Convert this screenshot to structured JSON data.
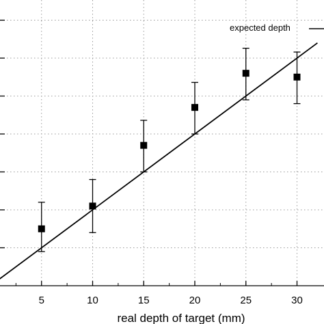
{
  "chart_data": {
    "type": "scatter",
    "xlabel": "real depth of target (mm)",
    "ylabel": "",
    "xlim": [
      0,
      32
    ],
    "ylim": [
      0,
      35
    ],
    "x_ticks": [
      5,
      10,
      15,
      20,
      25,
      30
    ],
    "y_gridlines": [
      5,
      10,
      15,
      20,
      25,
      30,
      35
    ],
    "grid": true,
    "legend_placement": "top-right",
    "series": [
      {
        "kind": "points_with_error_bars",
        "marker": "square",
        "color": "#000000",
        "points": [
          {
            "x": 5,
            "y": 7.5,
            "err_low": 3.0,
            "err_high": 3.5
          },
          {
            "x": 10,
            "y": 10.5,
            "err_low": 3.5,
            "err_high": 3.5
          },
          {
            "x": 15,
            "y": 18.5,
            "err_low": 3.5,
            "err_high": 3.3
          },
          {
            "x": 20,
            "y": 23.5,
            "err_low": 3.5,
            "err_high": 3.3
          },
          {
            "x": 25,
            "y": 28.0,
            "err_low": 3.5,
            "err_high": 3.3
          },
          {
            "x": 30,
            "y": 27.5,
            "err_low": 3.5,
            "err_high": 3.3
          }
        ]
      },
      {
        "name": "expected depth",
        "kind": "line",
        "color": "#000000",
        "x": [
          0,
          32
        ],
        "y": [
          0,
          32
        ]
      }
    ]
  }
}
